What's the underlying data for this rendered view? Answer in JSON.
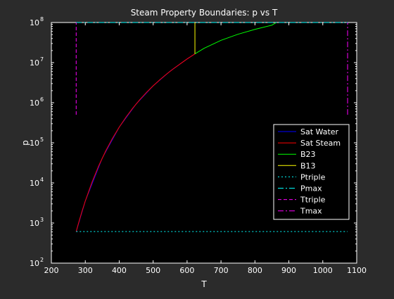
{
  "chart_data": {
    "type": "line",
    "title": "Steam Property Boundaries: p vs T",
    "xlabel": "T",
    "ylabel": "p",
    "xlim": [
      200,
      1100
    ],
    "ylim_log10": [
      2,
      8
    ],
    "yscale": "log",
    "grid": false,
    "legend_position": "right",
    "x_ticks": [
      "200",
      "300",
      "400",
      "500",
      "600",
      "700",
      "800",
      "900",
      "1000",
      "1100"
    ],
    "y_ticks": [
      {
        "base": "10",
        "exp": "2",
        "value": 100
      },
      {
        "base": "10",
        "exp": "3",
        "value": 1000
      },
      {
        "base": "10",
        "exp": "4",
        "value": 10000
      },
      {
        "base": "10",
        "exp": "5",
        "value": 100000
      },
      {
        "base": "10",
        "exp": "6",
        "value": 1000000
      },
      {
        "base": "10",
        "exp": "7",
        "value": 10000000
      },
      {
        "base": "10",
        "exp": "8",
        "value": 100000000
      }
    ],
    "series": [
      {
        "name": "Sat Water",
        "color": "#0000ff",
        "style": "solid",
        "points": [
          [
            273.16,
            611.657
          ],
          [
            300,
            3537
          ],
          [
            350,
            41682
          ],
          [
            400,
            245770
          ],
          [
            450,
            932200
          ],
          [
            500,
            2639200
          ],
          [
            550,
            6117200
          ],
          [
            600,
            12345000
          ],
          [
            623.15,
            16529000
          ]
        ]
      },
      {
        "name": "Sat Steam",
        "color": "#ff0000",
        "style": "solid",
        "points": [
          [
            273.16,
            611.657
          ],
          [
            280,
            991.8
          ],
          [
            290,
            1919.8
          ],
          [
            300,
            3537
          ],
          [
            320,
            10547
          ],
          [
            340,
            27188
          ],
          [
            360,
            62194
          ],
          [
            380,
            128960
          ],
          [
            400,
            245770
          ],
          [
            420,
            437270
          ],
          [
            440,
            733520
          ],
          [
            460,
            1171000
          ],
          [
            480,
            1791900
          ],
          [
            500,
            2639200
          ],
          [
            520,
            3761700
          ],
          [
            540,
            5214000
          ],
          [
            560,
            7052600
          ],
          [
            580,
            9340600
          ],
          [
            600,
            12345000
          ],
          [
            623.15,
            16529000
          ]
        ]
      },
      {
        "name": "B23",
        "color": "#00ff00",
        "style": "solid",
        "points": [
          [
            623.15,
            16529000
          ],
          [
            650,
            22700000
          ],
          [
            700,
            36000000
          ],
          [
            750,
            51000000
          ],
          [
            800,
            67500000
          ],
          [
            850,
            86000000
          ],
          [
            863.15,
            100000000
          ]
        ]
      },
      {
        "name": "B13",
        "color": "#ffff00",
        "style": "solid",
        "points": [
          [
            623.15,
            16529000
          ],
          [
            623.15,
            100000000
          ]
        ]
      },
      {
        "name": "Ptriple",
        "color": "#00ffff",
        "style": "dotted",
        "points": [
          [
            273.16,
            611.657
          ],
          [
            1073.15,
            611.657
          ]
        ]
      },
      {
        "name": "Pmax",
        "color": "#00ffff",
        "style": "dashdot",
        "points": [
          [
            273.16,
            100000000
          ],
          [
            1073.15,
            100000000
          ]
        ]
      },
      {
        "name": "Ttriple",
        "color": "#ff00ff",
        "style": "dashed",
        "points": [
          [
            273.16,
            500000
          ],
          [
            273.16,
            100000000
          ]
        ]
      },
      {
        "name": "Tmax",
        "color": "#ff00ff",
        "style": "dashdot",
        "points": [
          [
            1073.15,
            500000
          ],
          [
            1073.15,
            100000000
          ]
        ]
      }
    ]
  }
}
